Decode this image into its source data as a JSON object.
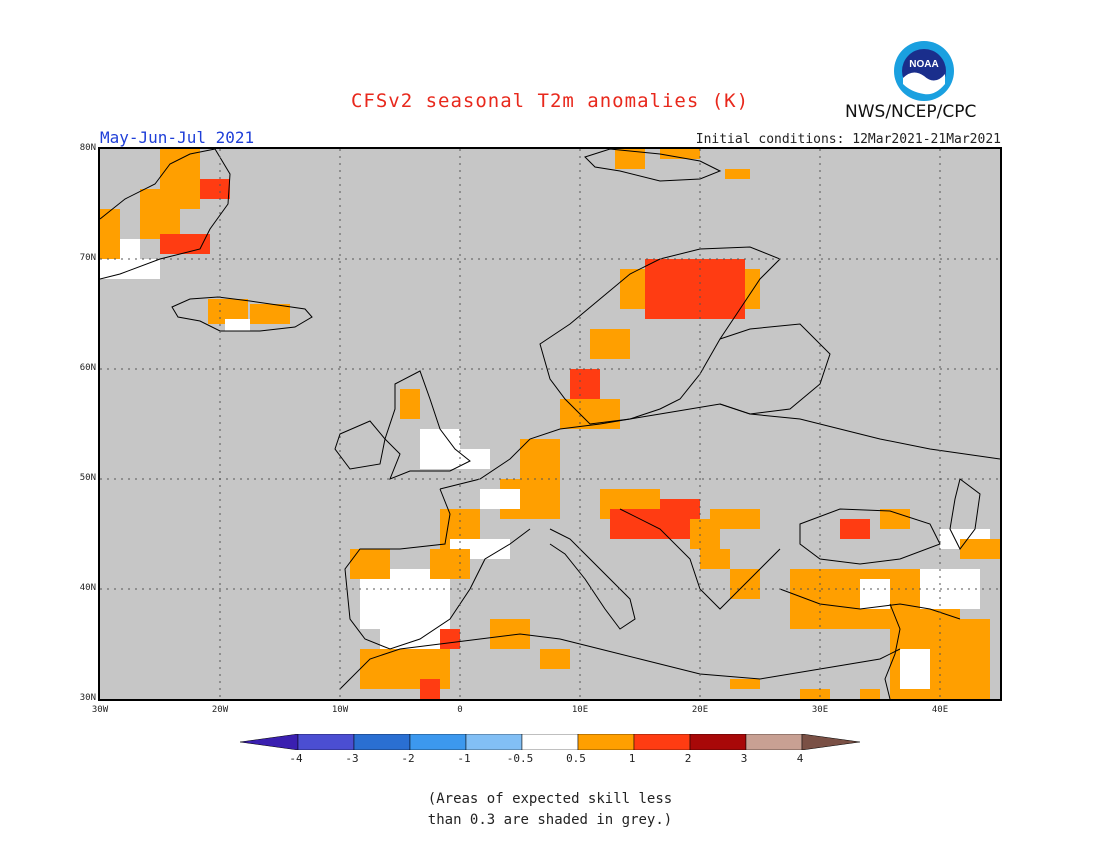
{
  "header": {
    "title": "CFSv2 seasonal T2m anomalies (K)",
    "period": "May-Jun-Jul 2021",
    "initial_conditions": "Initial conditions: 12Mar2021-21Mar2021",
    "agency": "NWS/NCEP/CPC",
    "logo_text": "NOAA"
  },
  "map": {
    "lon_range": [
      -30,
      45
    ],
    "lat_range": [
      30,
      80
    ],
    "lat_labels": [
      "80N",
      "70N",
      "60N",
      "50N",
      "40N",
      "30N"
    ],
    "lon_labels": [
      "30W",
      "20W",
      "10W",
      "0",
      "10E",
      "20E",
      "30E",
      "40E"
    ],
    "background_color": "#c6c6c6",
    "grid": "dotted"
  },
  "colorbar": {
    "ticks": [
      "-4",
      "-3",
      "-2",
      "-1",
      "-0.5",
      "0.5",
      "1",
      "2",
      "3",
      "4"
    ],
    "colors": [
      "#3a1fb0",
      "#4b4ed2",
      "#2a6fd2",
      "#3c98ee",
      "#82bff5",
      "#ffffff",
      "#ff9f00",
      "#ff3c12",
      "#a80808",
      "#c8a093",
      "#7a5045"
    ]
  },
  "footnote": {
    "line1": "(Areas of expected skill less",
    "line2": "than 0.3 are shaded in grey.)"
  }
}
